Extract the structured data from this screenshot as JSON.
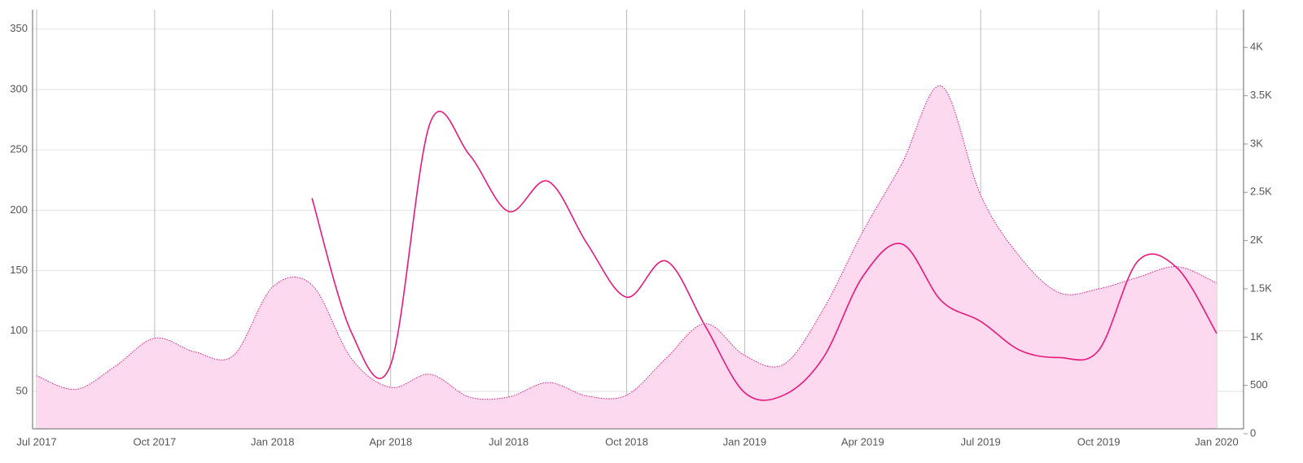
{
  "chart_data": {
    "type": "line",
    "x": [
      "2017-07",
      "2017-08",
      "2017-09",
      "2017-10",
      "2017-11",
      "2017-12",
      "2018-01",
      "2018-02",
      "2018-03",
      "2018-04",
      "2018-05",
      "2018-06",
      "2018-07",
      "2018-08",
      "2018-09",
      "2018-10",
      "2018-11",
      "2018-12",
      "2019-01",
      "2019-02",
      "2019-03",
      "2019-04",
      "2019-05",
      "2019-06",
      "2019-07",
      "2019-08",
      "2019-09",
      "2019-10",
      "2019-11",
      "2019-12",
      "2020-01"
    ],
    "series": [
      {
        "name": "area",
        "kind": "area",
        "axis": "y2",
        "color": "#e8197d",
        "fill": "#fcd9ee",
        "values": [
          600,
          460,
          700,
          990,
          850,
          810,
          1520,
          1540,
          780,
          480,
          615,
          380,
          380,
          530,
          390,
          400,
          780,
          1140,
          810,
          720,
          1290,
          2090,
          2800,
          3600,
          2470,
          1830,
          1460,
          1500,
          1620,
          1730,
          1560
        ]
      },
      {
        "name": "line",
        "kind": "line",
        "axis": "y",
        "color": "#e8197d",
        "values": [
          null,
          null,
          null,
          null,
          null,
          null,
          null,
          210,
          99,
          72,
          272,
          246,
          199,
          224,
          172,
          128,
          158,
          104,
          49,
          47,
          78,
          145,
          172,
          125,
          108,
          84,
          78,
          84,
          158,
          152,
          98
        ]
      }
    ],
    "xticks": [
      {
        "value": "2017-07",
        "label": "Jul 2017"
      },
      {
        "value": "2017-10",
        "label": "Oct 2017"
      },
      {
        "value": "2018-01",
        "label": "Jan 2018"
      },
      {
        "value": "2018-04",
        "label": "Apr 2018"
      },
      {
        "value": "2018-07",
        "label": "Jul 2018"
      },
      {
        "value": "2018-10",
        "label": "Oct 2018"
      },
      {
        "value": "2019-01",
        "label": "Jan 2019"
      },
      {
        "value": "2019-04",
        "label": "Apr 2019"
      },
      {
        "value": "2019-07",
        "label": "Jul 2019"
      },
      {
        "value": "2019-10",
        "label": "Oct 2019"
      },
      {
        "value": "2020-01",
        "label": "Jan 2020"
      }
    ],
    "ylim": [
      19,
      366
    ],
    "yticks": [
      50,
      100,
      150,
      200,
      250,
      300,
      350
    ],
    "y2lim": [
      0,
      4390
    ],
    "y2ticks": [
      0,
      500,
      {
        "value": 1000,
        "label": "1K"
      },
      {
        "value": 1500,
        "label": "1.5K"
      },
      {
        "value": 2000,
        "label": "2K"
      },
      {
        "value": 2500,
        "label": "2.5K"
      },
      {
        "value": 3000,
        "label": "3K"
      },
      {
        "value": 3500,
        "label": "3.5K"
      },
      {
        "value": 4000,
        "label": "4K"
      }
    ],
    "grid": true
  }
}
